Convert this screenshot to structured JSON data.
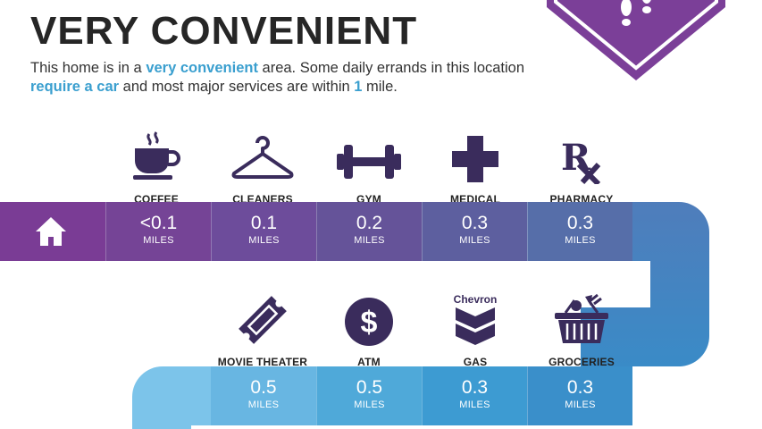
{
  "header": {
    "title": "VERY CONVENIENT",
    "desc_part1": "This home is in a ",
    "desc_hl1": "very convenient",
    "desc_part2": " area. Some daily errands in this location ",
    "desc_hl2": "require a car",
    "desc_part3": " and most major services are within ",
    "desc_hl3": "1",
    "desc_part4": " mile."
  },
  "badge": {
    "icon": "footprints-icon",
    "color": "#7b3f98"
  },
  "row1": {
    "home_icon": "house-icon",
    "items": [
      {
        "label": "COFFEE",
        "icon": "coffee-cup-icon",
        "distance": "<0.1",
        "unit": "MILES"
      },
      {
        "label": "CLEANERS",
        "icon": "hanger-icon",
        "distance": "0.1",
        "unit": "MILES"
      },
      {
        "label": "GYM",
        "icon": "dumbbell-icon",
        "distance": "0.2",
        "unit": "MILES"
      },
      {
        "label": "MEDICAL",
        "icon": "medical-cross-icon",
        "distance": "0.3",
        "unit": "MILES"
      },
      {
        "label": "PHARMACY",
        "icon": "rx-icon",
        "distance": "0.3",
        "unit": "MILES"
      }
    ]
  },
  "row2": {
    "items": [
      {
        "label": "MOVIE THEATER",
        "icon": "ticket-icon",
        "distance": "0.5",
        "unit": "MILES"
      },
      {
        "label": "ATM",
        "icon": "dollar-icon",
        "distance": "0.5",
        "unit": "MILES"
      },
      {
        "label": "GAS",
        "icon": "chevron-logo-icon",
        "logo_text": "Chevron",
        "distance": "0.3",
        "unit": "MILES"
      },
      {
        "label": "GROCERIES",
        "icon": "basket-icon",
        "distance": "0.3",
        "unit": "MILES"
      }
    ]
  },
  "colors": {
    "icon": "#3a2c5c",
    "row1": [
      "#7a3c95",
      "#754496",
      "#6d4c9b",
      "#61589f",
      "#5969a8",
      "#4f7dbb"
    ],
    "row2": [
      "#7cc4ea",
      "#62b2df",
      "#4aa5d6",
      "#3d9ad0",
      "#3a8bc7"
    ]
  }
}
